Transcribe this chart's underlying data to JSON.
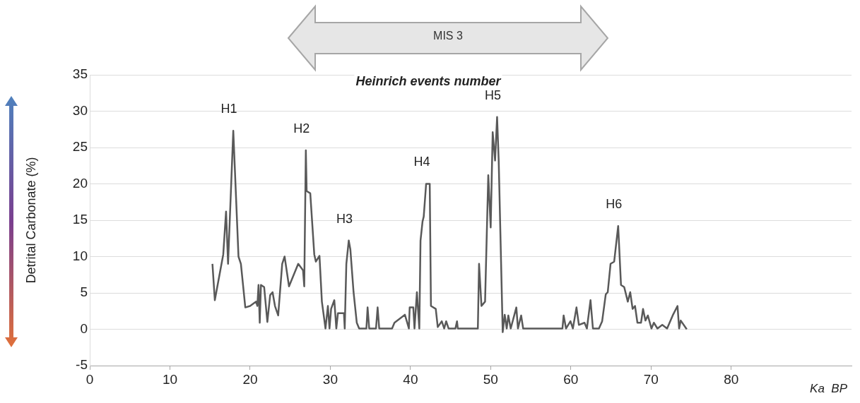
{
  "chart_data": {
    "type": "line",
    "title": "Heinrich events number",
    "ylabel": "Detrital Carbonate (%)",
    "xlabel": "Ka  BP",
    "xlim": [
      0,
      95
    ],
    "xticks": [
      0,
      10,
      20,
      30,
      40,
      50,
      60,
      70,
      80
    ],
    "ylim": [
      -5,
      35
    ],
    "yticks": [
      -5,
      0,
      5,
      10,
      15,
      20,
      25,
      30,
      35
    ],
    "grid": "y",
    "legend": false,
    "marker": "none",
    "line_style": "solid",
    "annotations": [
      "MIS 3",
      {
        "text": "H1",
        "x": 17.9,
        "y": 27.3
      },
      {
        "text": "H2",
        "x": 26.95,
        "y": 24.6
      },
      {
        "text": "H3",
        "x": 32.3,
        "y": 12.2
      },
      {
        "text": "H4",
        "x": 41.95,
        "y": 20.0
      },
      {
        "text": "H5",
        "x": 50.8,
        "y": 29.2
      },
      {
        "text": "H6",
        "x": 65.9,
        "y": 14.2
      }
    ],
    "series": [
      {
        "color": "#595959",
        "x": [
          15.3,
          15.6,
          16.65,
          17.0,
          17.25,
          17.9,
          18.55,
          18.85,
          19.4,
          20.0,
          20.75,
          20.9,
          21.05,
          21.2,
          21.35,
          21.75,
          22.15,
          22.5,
          22.8,
          23.1,
          23.5,
          24.0,
          24.3,
          24.85,
          26.0,
          26.6,
          26.75,
          26.95,
          27.05,
          27.5,
          28.0,
          28.2,
          28.65,
          28.95,
          29.4,
          29.7,
          29.9,
          30.1,
          30.5,
          30.75,
          30.95,
          31.7,
          31.8,
          32.0,
          32.3,
          32.5,
          32.9,
          33.3,
          33.6,
          34.5,
          34.65,
          34.85,
          35.7,
          35.9,
          36.1,
          37.7,
          38.0,
          39.3,
          39.8,
          39.9,
          40.35,
          40.5,
          40.8,
          41.1,
          41.25,
          41.5,
          41.65,
          41.95,
          42.4,
          42.55,
          43.15,
          43.4,
          43.9,
          44.2,
          44.45,
          44.75,
          45.6,
          45.8,
          45.9,
          48.4,
          48.55,
          48.85,
          49.3,
          49.7,
          50.0,
          50.25,
          50.55,
          50.8,
          51.0,
          51.5,
          51.75,
          52.0,
          52.2,
          52.5,
          53.2,
          53.4,
          53.8,
          54.05,
          58.95,
          59.1,
          59.4,
          59.95,
          60.25,
          60.7,
          61.0,
          61.7,
          62.0,
          62.45,
          62.75,
          63.5,
          63.9,
          64.35,
          64.6,
          64.95,
          65.4,
          65.9,
          66.25,
          66.65,
          67.1,
          67.4,
          67.7,
          68.0,
          68.3,
          68.75,
          69.0,
          69.3,
          69.6,
          70.05,
          70.35,
          70.8,
          71.4,
          72.0,
          72.7,
          73.3,
          73.5,
          73.7,
          74.45
        ],
        "values": [
          9.0,
          4.0,
          10.3,
          16.2,
          9.0,
          27.3,
          10.0,
          9.0,
          3.0,
          3.2,
          3.8,
          3.2,
          6.1,
          0.9,
          6.1,
          5.8,
          1.0,
          4.7,
          5.1,
          3.2,
          1.9,
          9.0,
          10.0,
          5.9,
          9.0,
          8.1,
          5.9,
          24.6,
          19.0,
          18.7,
          10.3,
          9.3,
          10.1,
          3.8,
          0.1,
          3.2,
          0.1,
          2.8,
          4.0,
          0.1,
          2.2,
          2.2,
          0.1,
          9.0,
          12.2,
          11.0,
          5.1,
          0.9,
          0.1,
          0.1,
          3.0,
          0.1,
          0.1,
          3.0,
          0.1,
          0.1,
          0.9,
          2.0,
          0.1,
          3.0,
          3.0,
          0.1,
          5.1,
          0.1,
          12.2,
          14.8,
          15.5,
          20.0,
          20.0,
          3.2,
          2.8,
          0.3,
          1.1,
          0.1,
          1.1,
          0.1,
          0.1,
          1.1,
          0.1,
          0.1,
          9.0,
          3.2,
          3.8,
          21.2,
          14.0,
          27.1,
          23.2,
          29.2,
          23.2,
          -0.4,
          2.0,
          0.1,
          1.9,
          0.1,
          3.0,
          0.1,
          1.9,
          0.1,
          0.1,
          1.9,
          0.1,
          1.1,
          0.1,
          3.0,
          0.6,
          0.9,
          0.1,
          4.0,
          0.1,
          0.1,
          1.1,
          4.8,
          5.1,
          9.0,
          9.3,
          14.2,
          6.1,
          5.8,
          3.8,
          5.1,
          2.8,
          3.2,
          0.9,
          0.9,
          2.8,
          1.2,
          1.9,
          0.1,
          0.9,
          0.1,
          0.6,
          0.1,
          1.9,
          3.2,
          0.1,
          1.2,
          0.0
        ]
      }
    ]
  }
}
